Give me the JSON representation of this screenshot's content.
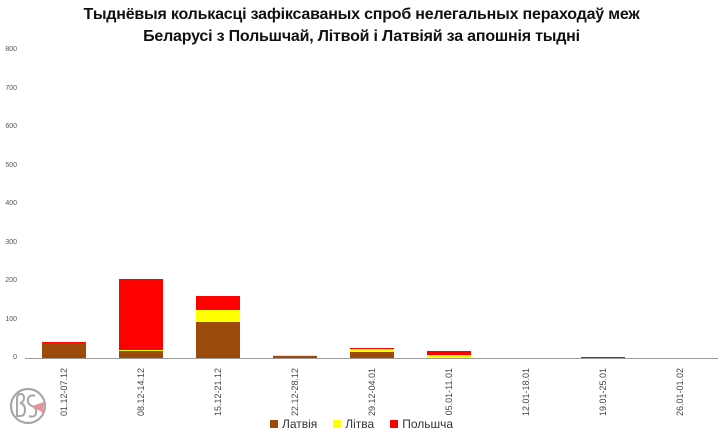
{
  "title_lines": [
    "Тыднёвыя колькасці зафіксаваных спроб нелегальных пераходаў меж",
    "Беларусі з Польшчай, Літвой і Латвіяй за апошнія тыдні"
  ],
  "y_ticks": [
    "0",
    "100",
    "200",
    "300",
    "400",
    "500",
    "600",
    "700",
    "800"
  ],
  "legend": [
    {
      "label": "Латвія",
      "color": "#9C4A0A"
    },
    {
      "label": "Літва",
      "color": "#FFFF00"
    },
    {
      "label": "Польшча",
      "color": "#FF0000"
    }
  ],
  "chart_data": {
    "type": "bar",
    "stacked": true,
    "title": "Тыднёвыя колькасці зафіксаваных спроб нелегальных пераходаў меж Беларусі з Польшчай, Літвой і Латвіяй за апошнія тыдні",
    "xlabel": "",
    "ylabel": "",
    "ylim": [
      0,
      800
    ],
    "y_ticks": [
      0,
      100,
      200,
      300,
      400,
      500,
      600,
      700,
      800
    ],
    "grid": false,
    "legend_position": "bottom",
    "categories": [
      "01.12-07.12",
      "08.12-14.12",
      "15.12-21.12",
      "22.12-28.12",
      "29.12-04.01",
      "05.01-11.01",
      "12.01-18.01",
      "19.01-25.01",
      "26.01-01.02"
    ],
    "series": [
      {
        "name": "Латвія",
        "color": "#9C4A0A",
        "values": [
          40,
          17,
          93,
          6,
          15,
          0,
          0,
          1,
          0
        ]
      },
      {
        "name": "Літва",
        "color": "#FFFF00",
        "values": [
          0,
          3,
          33,
          2,
          8,
          8,
          0,
          0,
          0
        ]
      },
      {
        "name": "Польшча",
        "color": "#FF0000",
        "values": [
          1,
          185,
          35,
          1,
          2,
          11,
          0,
          2,
          0
        ]
      }
    ]
  }
}
